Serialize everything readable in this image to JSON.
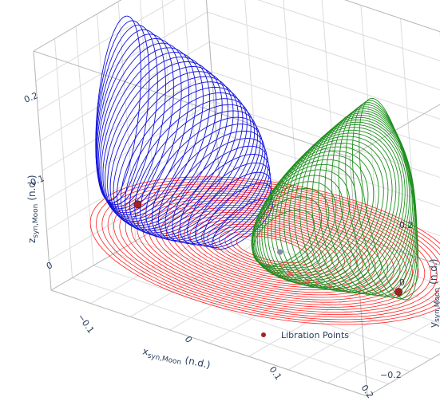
{
  "chart_data": {
    "type": "line3d",
    "axes": {
      "x": {
        "label_main": "x",
        "label_sub": "syn,Moon",
        "label_unit": "(n.d.)",
        "ticks": [
          -0.1,
          0,
          0.1,
          0.2
        ],
        "tick_labels": [
          "−0.1",
          "0",
          "0.1",
          "0.2"
        ]
      },
      "y": {
        "label_main": "y",
        "label_sub": "syn,Moon",
        "label_unit": "(n.d.)",
        "ticks": [
          -0.2,
          0,
          0.2
        ],
        "tick_labels": [
          "−0.2",
          "0",
          "0.2"
        ]
      },
      "z": {
        "label_main": "z",
        "label_sub": "syn,Moon",
        "label_unit": "(n.d.)",
        "ticks": [
          0,
          0.1,
          0.2
        ],
        "tick_labels": [
          "0",
          "0.1",
          "0.2"
        ]
      }
    },
    "series": [
      {
        "name": "",
        "color": "#ff1f1f",
        "kind": "planar-lyapunov",
        "orbits": 26
      },
      {
        "name": "",
        "color": "#1111dd",
        "kind": "halo-family-L1",
        "orbits": 30
      },
      {
        "name": "",
        "color": "#1f8f1f",
        "kind": "halo-family-L2",
        "orbits": 30
      },
      {
        "name": "Libration Points",
        "color": "#a32323",
        "kind": "markers",
        "points": [
          [
            -0.16,
            0.0,
            0.0
          ],
          [
            0.17,
            0.0,
            0.0
          ]
        ]
      }
    ],
    "legend": {
      "position": "bottom-right",
      "entries": [
        "Libration Points"
      ]
    },
    "grid": true
  }
}
